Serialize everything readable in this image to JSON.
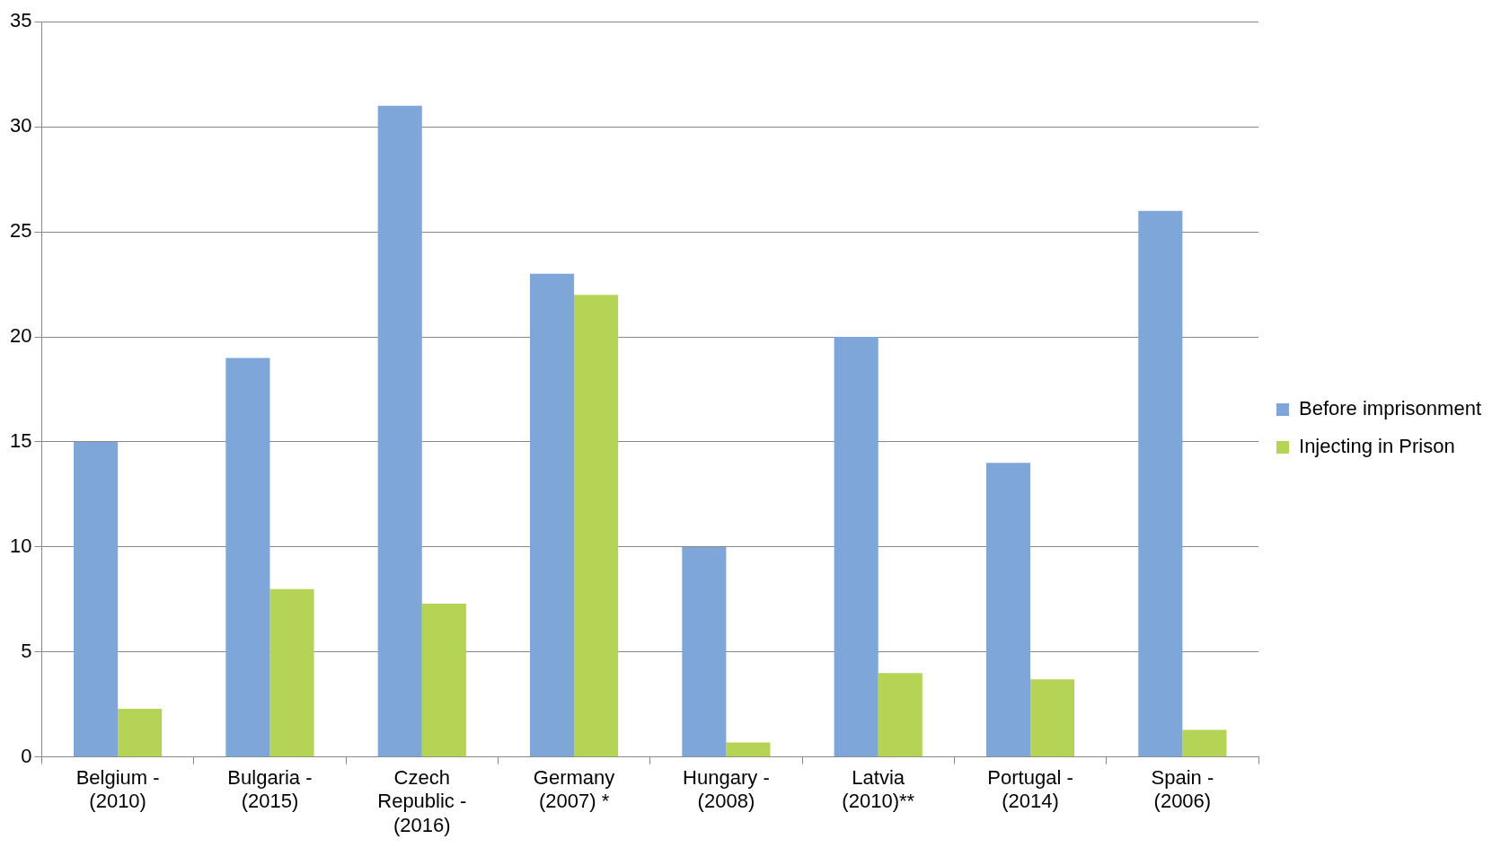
{
  "chart_data": {
    "type": "bar",
    "categories": [
      "Belgium - (2010)",
      "Bulgaria - (2015)",
      "Czech Republic - (2016)",
      "Germany (2007) *",
      "Hungary - (2008)",
      "Latvia (2010)**",
      "Portugal - (2014)",
      "Spain - (2006)"
    ],
    "series": [
      {
        "name": "Before imprisonment",
        "color": "#7ea6d9",
        "values": [
          15,
          19,
          31,
          23,
          10,
          20,
          14,
          26
        ]
      },
      {
        "name": "Injecting in Prison",
        "color": "#b5d456",
        "values": [
          2.3,
          8,
          7.3,
          22,
          0.7,
          4,
          3.7,
          1.3
        ]
      }
    ],
    "ylim": [
      0,
      35
    ],
    "yticks": [
      0,
      5,
      10,
      15,
      20,
      25,
      30,
      35
    ],
    "grid": "y",
    "legend": "right"
  }
}
